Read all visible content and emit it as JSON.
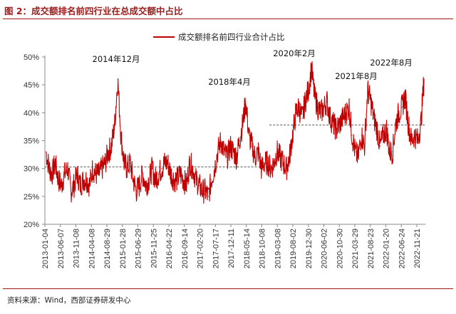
{
  "figure": {
    "title": "图 2：成交额排名前四行业在总成交额中占比",
    "source": "资料来源：Wind，西部证券研发中心"
  },
  "colors": {
    "series": "#c00000",
    "mean": "#555555",
    "brand": "#9b1b1b"
  },
  "chart_data": {
    "type": "line",
    "title": "",
    "xlabel": "",
    "ylabel": "",
    "ylim": [
      0.2,
      0.5
    ],
    "y_ticks": [
      "20%",
      "25%",
      "30%",
      "35%",
      "40%",
      "45%",
      "50%"
    ],
    "x_ticks": [
      "2013-01-04",
      "2013-06-07",
      "2013-11-08",
      "2014-04-08",
      "2014-08-29",
      "2015-01-28",
      "2015-06-29",
      "2015-11-25",
      "2016-04-22",
      "2016-09-14",
      "2017-02-20",
      "2017-07-17",
      "2017-12-11",
      "2018-05-14",
      "2018-10-08",
      "2019-03-08",
      "2019-08-02",
      "2019-12-30",
      "2020-06-02",
      "2020-10-30",
      "2021-03-29",
      "2021-08-23",
      "2022-01-20",
      "2022-06-24",
      "2022-11-21"
    ],
    "legend": {
      "position": "top-center"
    },
    "series": [
      {
        "name": "成交额排名前四行业合计占比",
        "x": [
          "2013-01",
          "2013-02",
          "2013-03",
          "2013-04",
          "2013-05",
          "2013-06",
          "2013-07",
          "2013-08",
          "2013-09",
          "2013-10",
          "2013-11",
          "2013-12",
          "2014-01",
          "2014-02",
          "2014-03",
          "2014-04",
          "2014-05",
          "2014-06",
          "2014-07",
          "2014-08",
          "2014-09",
          "2014-10",
          "2014-11",
          "2014-12",
          "2015-01",
          "2015-02",
          "2015-03",
          "2015-04",
          "2015-05",
          "2015-06",
          "2015-07",
          "2015-08",
          "2015-09",
          "2015-10",
          "2015-11",
          "2015-12",
          "2016-01",
          "2016-02",
          "2016-03",
          "2016-04",
          "2016-05",
          "2016-06",
          "2016-07",
          "2016-08",
          "2016-09",
          "2016-10",
          "2016-11",
          "2016-12",
          "2017-01",
          "2017-02",
          "2017-03",
          "2017-04",
          "2017-05",
          "2017-06",
          "2017-07",
          "2017-08",
          "2017-09",
          "2017-10",
          "2017-11",
          "2017-12",
          "2018-01",
          "2018-02",
          "2018-03",
          "2018-04",
          "2018-05",
          "2018-06",
          "2018-07",
          "2018-08",
          "2018-09",
          "2018-10",
          "2018-11",
          "2018-12",
          "2019-01",
          "2019-02",
          "2019-03",
          "2019-04",
          "2019-05",
          "2019-06",
          "2019-07",
          "2019-08",
          "2019-09",
          "2019-10",
          "2019-11",
          "2019-12",
          "2020-01",
          "2020-02",
          "2020-03",
          "2020-04",
          "2020-05",
          "2020-06",
          "2020-07",
          "2020-08",
          "2020-09",
          "2020-10",
          "2020-11",
          "2020-12",
          "2021-01",
          "2021-02",
          "2021-03",
          "2021-04",
          "2021-05",
          "2021-06",
          "2021-07",
          "2021-08",
          "2021-09",
          "2021-10",
          "2021-11",
          "2021-12",
          "2022-01",
          "2022-02",
          "2022-03",
          "2022-04",
          "2022-05",
          "2022-06",
          "2022-07",
          "2022-08",
          "2022-09",
          "2022-10",
          "2022-11",
          "2022-12",
          "2023-01",
          "2023-02"
        ],
        "values": [
          0.33,
          0.3,
          0.29,
          0.31,
          0.28,
          0.27,
          0.29,
          0.3,
          0.26,
          0.27,
          0.29,
          0.27,
          0.28,
          0.28,
          0.27,
          0.3,
          0.29,
          0.29,
          0.3,
          0.31,
          0.33,
          0.34,
          0.38,
          0.46,
          0.36,
          0.31,
          0.3,
          0.31,
          0.28,
          0.26,
          0.27,
          0.29,
          0.27,
          0.28,
          0.3,
          0.28,
          0.29,
          0.3,
          0.31,
          0.31,
          0.29,
          0.28,
          0.28,
          0.29,
          0.28,
          0.27,
          0.31,
          0.3,
          0.28,
          0.27,
          0.26,
          0.26,
          0.25,
          0.28,
          0.3,
          0.33,
          0.35,
          0.33,
          0.32,
          0.34,
          0.33,
          0.32,
          0.35,
          0.38,
          0.42,
          0.36,
          0.34,
          0.32,
          0.33,
          0.3,
          0.31,
          0.31,
          0.3,
          0.31,
          0.33,
          0.32,
          0.31,
          0.3,
          0.32,
          0.36,
          0.4,
          0.41,
          0.39,
          0.42,
          0.44,
          0.48,
          0.43,
          0.41,
          0.4,
          0.41,
          0.42,
          0.39,
          0.38,
          0.37,
          0.38,
          0.39,
          0.4,
          0.41,
          0.36,
          0.33,
          0.32,
          0.36,
          0.34,
          0.44,
          0.42,
          0.39,
          0.37,
          0.34,
          0.36,
          0.37,
          0.33,
          0.33,
          0.38,
          0.4,
          0.41,
          0.43,
          0.38,
          0.35,
          0.36,
          0.35,
          0.38,
          0.46
        ]
      }
    ],
    "mean_lines": [
      {
        "from": "2013-01",
        "to": "2019-01",
        "value": 0.303
      },
      {
        "from": "2019-01",
        "to": "2023-02",
        "value": 0.378
      }
    ],
    "annotations": [
      {
        "text": "2014年12月",
        "x": "2014-12"
      },
      {
        "text": "2018年4月",
        "x": "2018-04"
      },
      {
        "text": "2020年2月",
        "x": "2020-02"
      },
      {
        "text": "2021年8月",
        "x": "2021-08"
      },
      {
        "text": "2022年8月",
        "x": "2022-08"
      }
    ]
  }
}
